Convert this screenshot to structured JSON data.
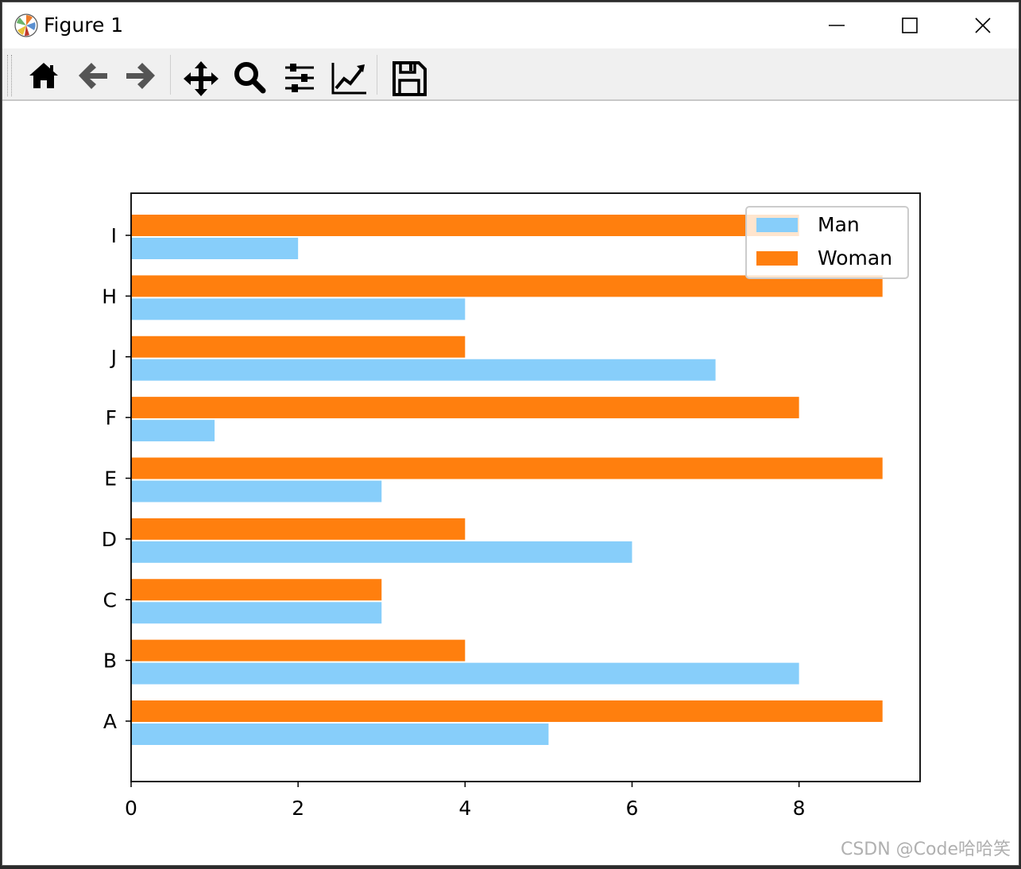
{
  "window": {
    "title": "Figure 1",
    "controls": {
      "minimize": "minimize",
      "maximize": "maximize",
      "close": "close"
    }
  },
  "toolbar": {
    "buttons": [
      {
        "icon": "home-icon",
        "name": "home-button"
      },
      {
        "icon": "back-arrow-icon",
        "name": "back-button"
      },
      {
        "icon": "forward-arrow-icon",
        "name": "forward-button"
      },
      {
        "icon": "move-icon",
        "name": "pan-button"
      },
      {
        "icon": "zoom-icon",
        "name": "zoom-button"
      },
      {
        "icon": "sliders-icon",
        "name": "configure-subplots-button"
      },
      {
        "icon": "line-chart-icon",
        "name": "edit-axis-button"
      },
      {
        "icon": "save-icon",
        "name": "save-button"
      }
    ]
  },
  "colors": {
    "man": "#87CEFA",
    "woman": "#FF7F0E",
    "legend_border": "#cccccc"
  },
  "chart_data": {
    "type": "bar",
    "orientation": "horizontal",
    "categories": [
      "A",
      "B",
      "C",
      "D",
      "E",
      "F",
      "J",
      "H",
      "I"
    ],
    "series": [
      {
        "name": "Man",
        "values": [
          5,
          8,
          3,
          6,
          3,
          1,
          7,
          4,
          2
        ]
      },
      {
        "name": "Woman",
        "values": [
          9,
          4,
          3,
          4,
          9,
          8,
          4,
          9,
          8
        ]
      }
    ],
    "xticks": [
      "0",
      "2",
      "4",
      "6",
      "8"
    ],
    "xlim": [
      0,
      9.45
    ],
    "title": "",
    "xlabel": "",
    "ylabel": "",
    "legend": {
      "placement": "upper right",
      "entries": [
        "Man",
        "Woman"
      ]
    },
    "grid": false
  },
  "watermark": "CSDN @Code哈哈笑"
}
